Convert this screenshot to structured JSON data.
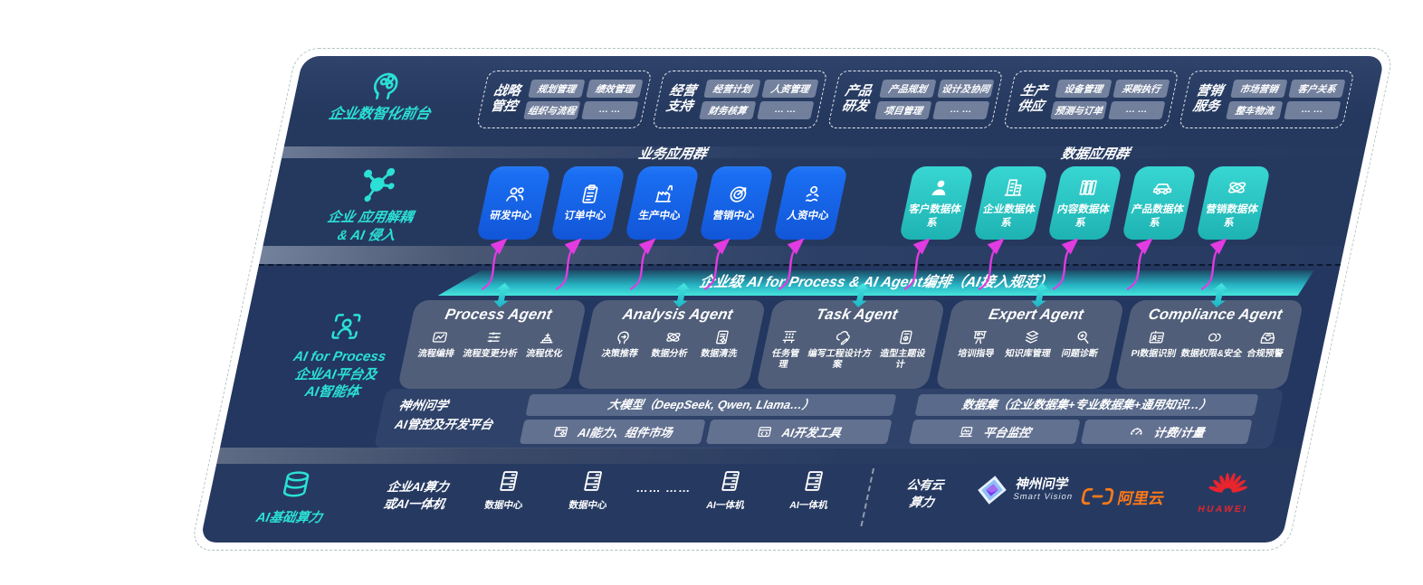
{
  "colors": {
    "accent_teal": "#2BE0D4",
    "blue_box": "#1A6EF2",
    "teal_box": "#2CC8C6",
    "magenta_arrow": "#E23BE2",
    "alibaba_orange": "#FF7A18",
    "huawei_red": "#E8242D",
    "panel_navy": "#25395F"
  },
  "front_layer": {
    "label": "企业数智化前台",
    "icon": "brain-icon",
    "groups": [
      {
        "title": "战略管控",
        "items": [
          "规划管理",
          "绩效管理",
          "组织与流程",
          "… …"
        ]
      },
      {
        "title": "经营支持",
        "items": [
          "经营计划",
          "人资管理",
          "财务核算",
          "… …"
        ]
      },
      {
        "title": "产品研发",
        "items": [
          "产品规划",
          "设计及协同",
          "项目管理",
          "… …"
        ]
      },
      {
        "title": "生产供应",
        "items": [
          "设备管理",
          "采购执行",
          "预测与订单",
          "… …"
        ]
      },
      {
        "title": "营销服务",
        "items": [
          "市场营销",
          "客户关系",
          "整车物流",
          "… …"
        ]
      }
    ]
  },
  "app_layer": {
    "label_line1": "企业 应用解耦",
    "label_line2": "& AI 侵入",
    "icon": "molecule-icon",
    "business_group_title": "业务应用群",
    "data_group_title": "数据应用群",
    "business_apps": [
      {
        "label": "研发中心",
        "icon": "team-icon"
      },
      {
        "label": "订单中心",
        "icon": "clipboard-icon"
      },
      {
        "label": "生产中心",
        "icon": "factory-icon"
      },
      {
        "label": "营销中心",
        "icon": "target-icon"
      },
      {
        "label": "人资中心",
        "icon": "hr-icon"
      }
    ],
    "data_apps": [
      {
        "label": "客户数据体系",
        "icon": "person-icon"
      },
      {
        "label": "企业数据体系",
        "icon": "building-icon"
      },
      {
        "label": "内容数据体系",
        "icon": "books-icon"
      },
      {
        "label": "产品数据体系",
        "icon": "car-icon"
      },
      {
        "label": "营销数据体系",
        "icon": "atom-icon"
      }
    ]
  },
  "ai_layer": {
    "label_line1": "AI for Process",
    "label_line2": "企业AI平台及",
    "label_line3": "AI智能体",
    "icon": "scan-person-icon",
    "orchestration_bar": "企业级 AI for Process & AI Agent编排（AI接入规范）",
    "agents": [
      {
        "title": "Process Agent",
        "items": [
          {
            "label": "流程编排",
            "icon": "workflow-icon"
          },
          {
            "label": "流程变更分析",
            "icon": "sliders-icon"
          },
          {
            "label": "流程优化",
            "icon": "optimize-icon"
          }
        ]
      },
      {
        "title": "Analysis Agent",
        "items": [
          {
            "label": "决策推荐",
            "icon": "decision-icon"
          },
          {
            "label": "数据分析",
            "icon": "atom-icon"
          },
          {
            "label": "数据清洗",
            "icon": "doc-gear-icon"
          }
        ]
      },
      {
        "title": "Task Agent",
        "items": [
          {
            "label": "任务管理",
            "icon": "task-icon"
          },
          {
            "label": "编写工程设计方案",
            "icon": "cloud-edit-icon"
          },
          {
            "label": "造型主题设计",
            "icon": "design-icon"
          }
        ]
      },
      {
        "title": "Expert Agent",
        "items": [
          {
            "label": "培训指导",
            "icon": "training-icon"
          },
          {
            "label": "知识库管理",
            "icon": "layers-icon"
          },
          {
            "label": "问题诊断",
            "icon": "diagnosis-icon"
          }
        ]
      },
      {
        "title": "Compliance Agent",
        "items": [
          {
            "label": "PI数据识别",
            "icon": "id-card-icon"
          },
          {
            "label": "数据权限&安全",
            "icon": "permission-icon"
          },
          {
            "label": "合规预警",
            "icon": "alert-inbox-icon"
          }
        ]
      }
    ],
    "platform": {
      "label_line1": "神州问学",
      "label_line2": "AI管控及开发平台",
      "model_bar": "大模型（DeepSeek, Qwen, Llama…）",
      "model_tools": [
        {
          "label": "AI能力、组件市场",
          "icon": "market-icon"
        },
        {
          "label": "AI开发工具",
          "icon": "devtools-icon"
        }
      ],
      "dataset_bar": "数据集（企业数据集+专业数据集+通用知识…）",
      "dataset_tools": [
        {
          "label": "平台监控",
          "icon": "monitor-icon"
        },
        {
          "label": "计费/计量",
          "icon": "gauge-icon"
        }
      ]
    }
  },
  "infra_layer": {
    "label": "AI基础算力",
    "icon": "database-icon",
    "compute_label_line1": "企业AI算力",
    "compute_label_line2": "或AI一体机",
    "nodes": [
      {
        "label": "数据中心",
        "icon": "server-icon"
      },
      {
        "label": "数据中心",
        "icon": "server-icon"
      },
      {
        "label": "AI一体机",
        "icon": "server-icon"
      },
      {
        "label": "AI一体机",
        "icon": "server-icon"
      }
    ],
    "ellipsis": "…… ……",
    "public_cloud_line1": "公有云",
    "public_cloud_line2": "算力",
    "vendors": [
      {
        "name": "神州问学",
        "subtitle": "Smart Vision",
        "icon": "smartvision-logo"
      },
      {
        "name": "阿里云",
        "icon": "alibaba-cloud-logo"
      },
      {
        "name": "HUAWEI",
        "icon": "huawei-logo"
      }
    ]
  }
}
